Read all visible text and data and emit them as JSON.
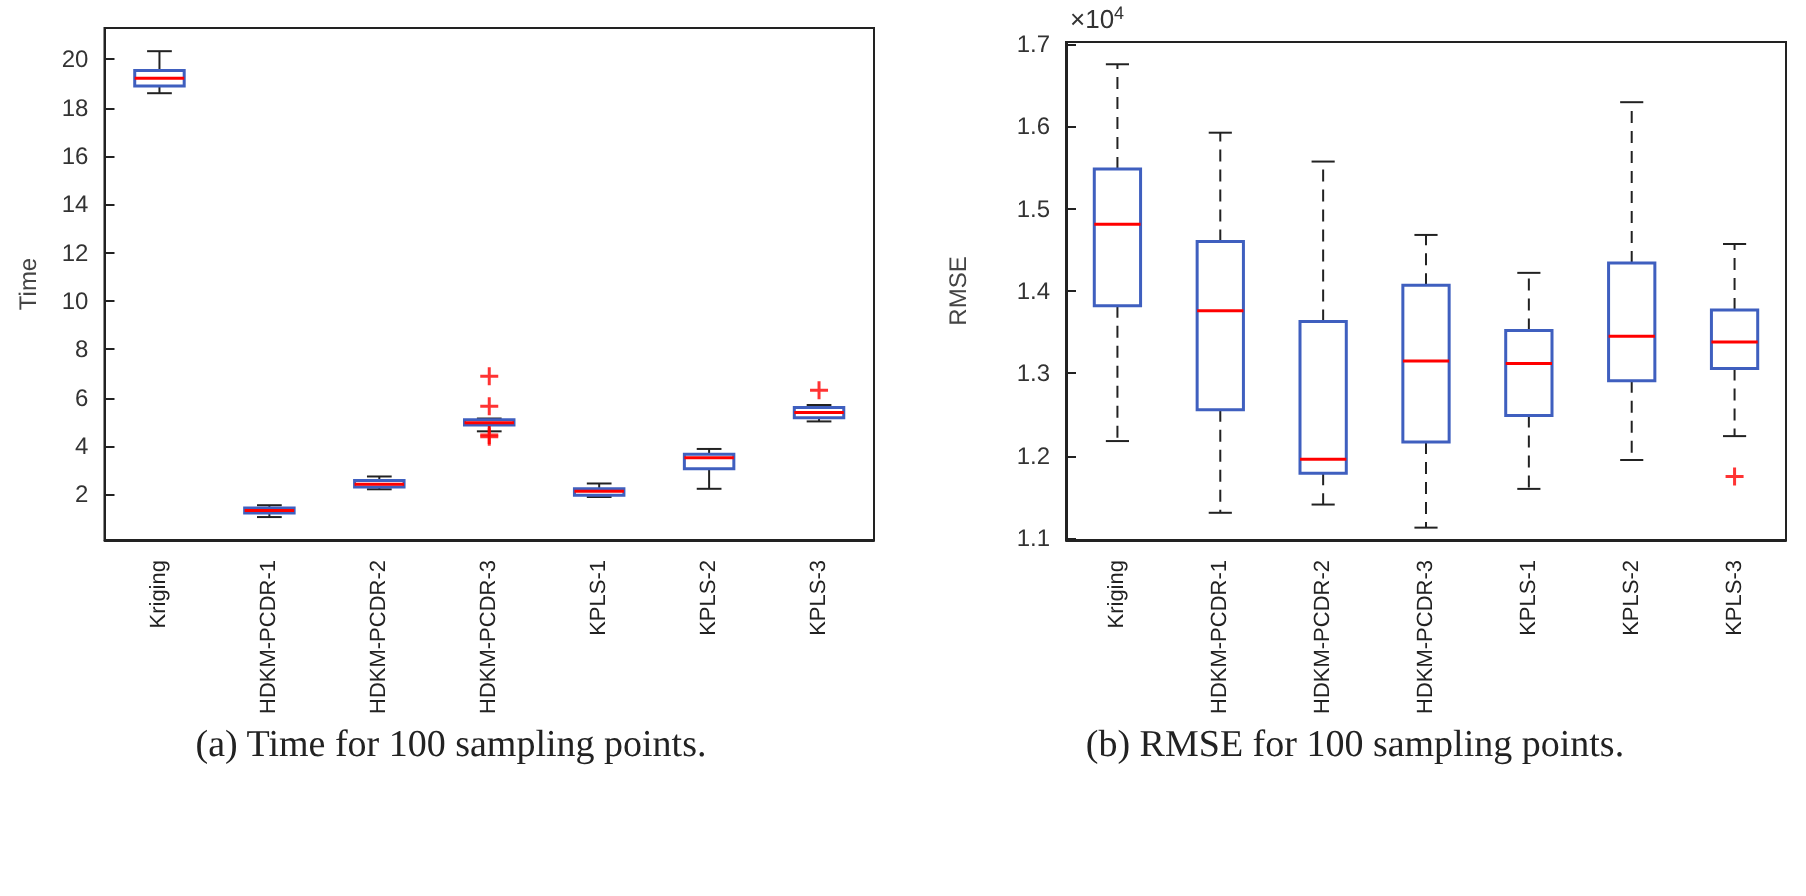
{
  "chart_data": [
    {
      "type": "box",
      "ylabel": "Time",
      "categories": [
        "Kriging",
        "HDKM-PCDR-1",
        "HDKM-PCDR-2",
        "HDKM-PCDR-3",
        "KPLS-1",
        "KPLS-2",
        "KPLS-3"
      ],
      "ylim": [
        0.1,
        21.3
      ],
      "yticks": [
        2,
        4,
        6,
        8,
        10,
        12,
        14,
        16,
        18,
        20
      ],
      "annotations": [
        "(a) Time for 100 sampling points."
      ],
      "series": [
        {
          "color": "#3f5fbf",
          "boxes": [
            {
              "low": 18.6,
              "q1": 18.9,
              "median": 19.22,
              "q3": 19.54,
              "high": 20.34
            },
            {
              "low": 1.05,
              "q1": 1.22,
              "median": 1.32,
              "q3": 1.42,
              "high": 1.54
            },
            {
              "low": 2.2,
              "q1": 2.29,
              "median": 2.41,
              "q3": 2.56,
              "high": 2.73
            },
            {
              "low": 4.6,
              "q1": 4.86,
              "median": 4.96,
              "q3": 5.08,
              "high": 5.13,
              "outliers": [
                6.88,
                5.64,
                4.45,
                4.38
              ]
            },
            {
              "low": 1.88,
              "q1": 1.95,
              "median": 2.12,
              "q3": 2.22,
              "high": 2.44
            },
            {
              "low": 2.22,
              "q1": 3.05,
              "median": 3.51,
              "q3": 3.65,
              "high": 3.87
            },
            {
              "low": 5.01,
              "q1": 5.16,
              "median": 5.38,
              "q3": 5.59,
              "high": 5.69,
              "outliers": [
                6.3
              ]
            }
          ]
        }
      ]
    },
    {
      "type": "box",
      "ylabel": "RMSE",
      "categories": [
        "Kriging",
        "HDKM-PCDR-1",
        "HDKM-PCDR-2",
        "HDKM-PCDR-3",
        "KPLS-1",
        "KPLS-2",
        "KPLS-3"
      ],
      "ylim": [
        1.098,
        1.702
      ],
      "yticks": [
        1.1,
        1.2,
        1.3,
        1.4,
        1.5,
        1.6,
        1.7
      ],
      "line_style": "dashed",
      "annotations": [
        "×10$^{4}$",
        "(b) RMSE for 100 sampling points."
      ],
      "series": [
        {
          "color": "#3f5fbf",
          "boxes": [
            {
              "low": 1.218,
              "q1": 1.382,
              "median": 1.481,
              "q3": 1.548,
              "high": 1.675
            },
            {
              "low": 1.131,
              "q1": 1.256,
              "median": 1.376,
              "q3": 1.46,
              "high": 1.592
            },
            {
              "low": 1.141,
              "q1": 1.179,
              "median": 1.196,
              "q3": 1.363,
              "high": 1.557
            },
            {
              "low": 1.113,
              "q1": 1.217,
              "median": 1.315,
              "q3": 1.407,
              "high": 1.468
            },
            {
              "low": 1.16,
              "q1": 1.249,
              "median": 1.312,
              "q3": 1.352,
              "high": 1.422
            },
            {
              "low": 1.195,
              "q1": 1.291,
              "median": 1.345,
              "q3": 1.434,
              "high": 1.629
            },
            {
              "low": 1.224,
              "q1": 1.306,
              "median": 1.338,
              "q3": 1.377,
              "high": 1.457,
              "outliers": [
                1.175
              ]
            }
          ]
        }
      ]
    }
  ]
}
